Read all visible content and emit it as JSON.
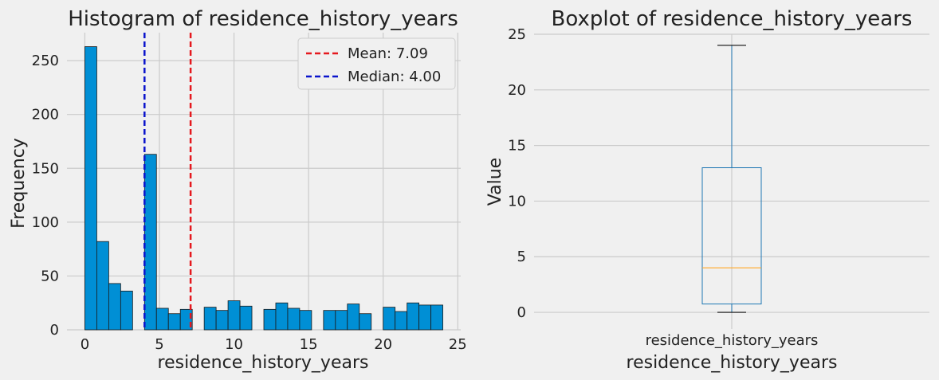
{
  "chart_data": [
    {
      "type": "bar",
      "title": "Histogram of residence_history_years",
      "xlabel": "residence_history_years",
      "ylabel": "Frequency",
      "xlim": [
        -1.2,
        25.2
      ],
      "ylim": [
        0,
        276
      ],
      "xticks": [
        0,
        5,
        10,
        15,
        20,
        25
      ],
      "yticks": [
        0,
        50,
        100,
        150,
        200,
        250
      ],
      "grid": true,
      "legend_position": "top-right",
      "bin_width": 0.8,
      "bins": [
        {
          "x0": 0.0,
          "count": 263
        },
        {
          "x0": 0.8,
          "count": 82
        },
        {
          "x0": 1.6,
          "count": 43
        },
        {
          "x0": 2.4,
          "count": 36
        },
        {
          "x0": 3.2,
          "count": 0
        },
        {
          "x0": 4.0,
          "count": 163
        },
        {
          "x0": 4.8,
          "count": 20
        },
        {
          "x0": 5.6,
          "count": 15
        },
        {
          "x0": 6.4,
          "count": 19
        },
        {
          "x0": 7.2,
          "count": 0
        },
        {
          "x0": 8.0,
          "count": 21
        },
        {
          "x0": 8.8,
          "count": 18
        },
        {
          "x0": 9.6,
          "count": 27
        },
        {
          "x0": 10.4,
          "count": 22
        },
        {
          "x0": 11.2,
          "count": 0
        },
        {
          "x0": 12.0,
          "count": 19
        },
        {
          "x0": 12.8,
          "count": 25
        },
        {
          "x0": 13.6,
          "count": 20
        },
        {
          "x0": 14.4,
          "count": 18
        },
        {
          "x0": 15.2,
          "count": 0
        },
        {
          "x0": 16.0,
          "count": 18
        },
        {
          "x0": 16.8,
          "count": 18
        },
        {
          "x0": 17.6,
          "count": 24
        },
        {
          "x0": 18.4,
          "count": 15
        },
        {
          "x0": 19.2,
          "count": 0
        },
        {
          "x0": 20.0,
          "count": 21
        },
        {
          "x0": 20.8,
          "count": 17
        },
        {
          "x0": 21.6,
          "count": 25
        },
        {
          "x0": 22.4,
          "count": 23
        },
        {
          "x0": 23.2,
          "count": 23
        }
      ],
      "bar_color": "#008fd5",
      "lines": [
        {
          "name": "Mean: 7.09",
          "value": 7.09,
          "color": "#e5191e"
        },
        {
          "name": "Median: 4.00",
          "value": 4.0,
          "color": "#0b14cc"
        }
      ]
    },
    {
      "type": "box",
      "title": "Boxplot of residence_history_years",
      "xlabel": "residence_history_years",
      "ylabel": "Value",
      "category": "residence_history_years",
      "ylim": [
        -1.5,
        25
      ],
      "yticks": [
        0,
        5,
        10,
        15,
        20,
        25
      ],
      "grid": true,
      "box": {
        "min": 0,
        "q1": 0.75,
        "median": 4.0,
        "q3": 13.0,
        "max": 24
      },
      "box_color": "#1f77b4",
      "median_color": "#ffa726"
    }
  ]
}
